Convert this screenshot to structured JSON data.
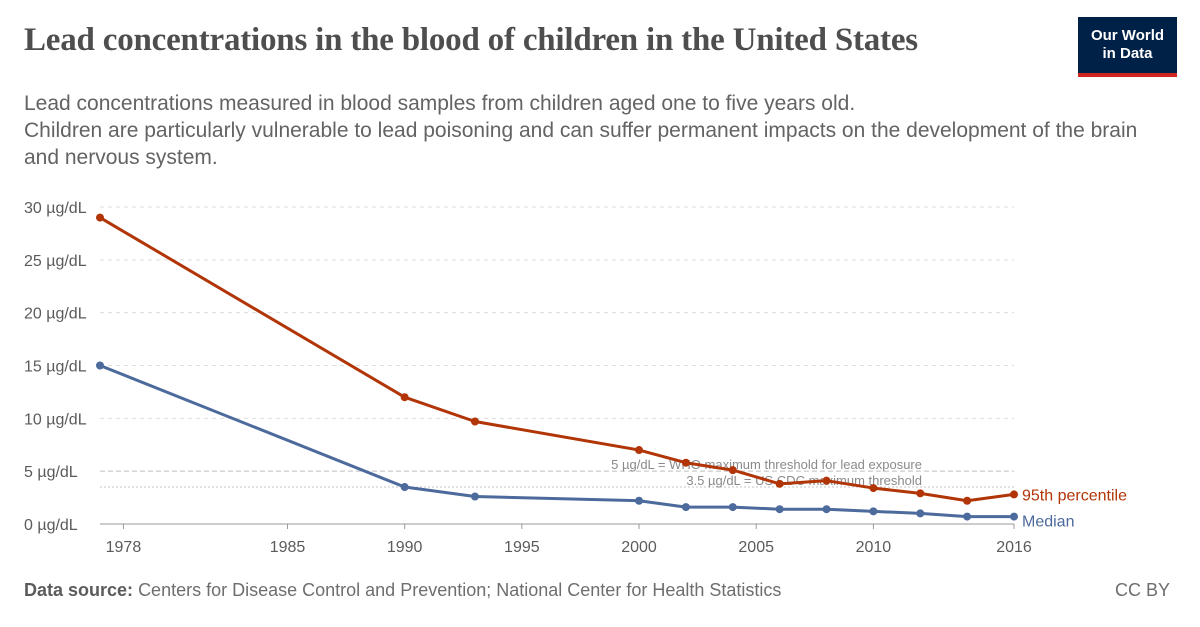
{
  "header": {
    "title": "Lead concentrations in the blood of children in the United States",
    "subtitle_line1": "Lead concentrations measured in blood samples from children aged one to five years old.",
    "subtitle_line2": "Children are particularly vulnerable to lead poisoning and can suffer permanent impacts on the development of the brain and nervous system."
  },
  "logo": {
    "line1": "Our World",
    "line2": "in Data",
    "bg_color": "#002147",
    "accent_color": "#ce261e"
  },
  "footer": {
    "source_label": "Data source:",
    "source_text": "Centers for Disease Control and Prevention; National Center for Health Statistics",
    "license": "CC BY"
  },
  "chart_data": {
    "type": "line",
    "title": "Lead concentrations in the blood of children in the United States",
    "xlabel": "",
    "ylabel": "",
    "xlim": [
      1977,
      2016
    ],
    "ylim": [
      0,
      30
    ],
    "x_ticks": [
      1978,
      1985,
      1990,
      1995,
      2000,
      2005,
      2010,
      2016
    ],
    "y_ticks": [
      {
        "value": 0,
        "label": "0 µg/dL"
      },
      {
        "value": 5,
        "label": "5 µg/dL"
      },
      {
        "value": 10,
        "label": "10 µg/dL"
      },
      {
        "value": 15,
        "label": "15 µg/dL"
      },
      {
        "value": 20,
        "label": "20 µg/dL"
      },
      {
        "value": 25,
        "label": "25 µg/dL"
      },
      {
        "value": 30,
        "label": "30 µg/dL"
      }
    ],
    "grid": true,
    "reference_lines": [
      {
        "value": 5,
        "label": "5 µg/dL = WHO maximum threshold for lead exposure",
        "style": "dashed"
      },
      {
        "value": 3.5,
        "label": "3.5 µg/dL = US CDC maximum threshold",
        "style": "dotted"
      }
    ],
    "series": [
      {
        "name": "95th percentile",
        "color": "#b13507",
        "points": [
          {
            "x": 1977,
            "y": 29
          },
          {
            "x": 1990,
            "y": 12
          },
          {
            "x": 1993,
            "y": 9.7
          },
          {
            "x": 2000,
            "y": 7
          },
          {
            "x": 2002,
            "y": 5.8
          },
          {
            "x": 2004,
            "y": 5.1
          },
          {
            "x": 2006,
            "y": 3.8
          },
          {
            "x": 2008,
            "y": 4.1
          },
          {
            "x": 2010,
            "y": 3.4
          },
          {
            "x": 2012,
            "y": 2.9
          },
          {
            "x": 2014,
            "y": 2.2
          },
          {
            "x": 2016,
            "y": 2.8
          }
        ]
      },
      {
        "name": "Median",
        "color": "#4c6a9c",
        "points": [
          {
            "x": 1977,
            "y": 15
          },
          {
            "x": 1990,
            "y": 3.5
          },
          {
            "x": 1993,
            "y": 2.6
          },
          {
            "x": 2000,
            "y": 2.2
          },
          {
            "x": 2002,
            "y": 1.6
          },
          {
            "x": 2004,
            "y": 1.6
          },
          {
            "x": 2006,
            "y": 1.4
          },
          {
            "x": 2008,
            "y": 1.4
          },
          {
            "x": 2010,
            "y": 1.2
          },
          {
            "x": 2012,
            "y": 1.0
          },
          {
            "x": 2014,
            "y": 0.7
          },
          {
            "x": 2016,
            "y": 0.7
          }
        ]
      }
    ]
  }
}
